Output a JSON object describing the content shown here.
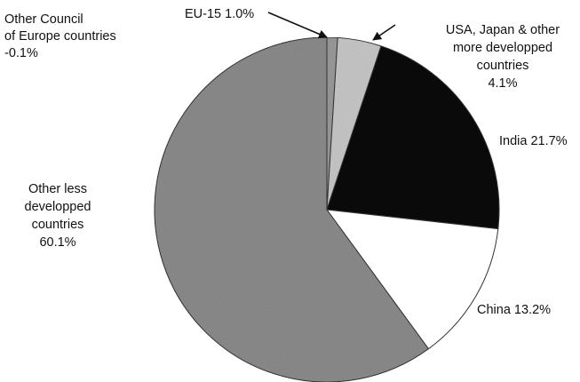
{
  "chart_data": {
    "type": "pie",
    "title": "",
    "start_angle_deg": 0,
    "direction": "clockwise",
    "slices": [
      {
        "label_lines": [
          "EU-15   1.0%"
        ],
        "label": "EU-15",
        "value": 1.0,
        "value_text": "1.0%",
        "color": "#9a9a9a"
      },
      {
        "label_lines": [
          "USA, Japan & other",
          "more developped",
          "countries",
          "4.1%"
        ],
        "label": "USA, Japan & other more developped countries",
        "value": 4.1,
        "value_text": "4.1%",
        "color": "#c8c8c8"
      },
      {
        "label_lines": [
          "India   21.7%"
        ],
        "label": "India",
        "value": 21.7,
        "value_text": "21.7%",
        "color": "#0a0a0a"
      },
      {
        "label_lines": [
          "China   13.2%"
        ],
        "label": "China",
        "value": 13.2,
        "value_text": "13.2%",
        "color": "#ffffff"
      },
      {
        "label_lines": [
          "Other less",
          "developped",
          "countries",
          "60.1%"
        ],
        "label": "Other less developped countries",
        "value": 60.1,
        "value_text": "60.1%",
        "color": "#8c8c8c"
      },
      {
        "label_lines": [
          "Other Council",
          "of Europe countries",
          "-0.1%"
        ],
        "label": "Other Council of Europe countries",
        "value": -0.1,
        "value_text": "-0.1%",
        "color": "#bdbdbd"
      }
    ]
  }
}
